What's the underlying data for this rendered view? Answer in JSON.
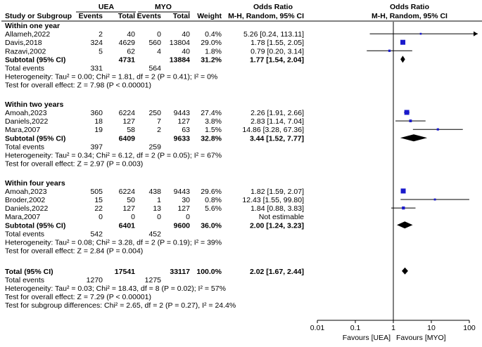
{
  "chart_data": {
    "type": "forest",
    "header": {
      "group1": "UEA",
      "group2": "MYO",
      "odds_ratio_col": "Odds Ratio",
      "plot_title": "Odds Ratio",
      "study_col": "Study or Subgroup",
      "events": "Events",
      "total": "Total",
      "weight": "Weight",
      "method": "M-H, Random, 95% CI"
    },
    "x_axis": {
      "scale": "log",
      "ticks": [
        0.01,
        0.1,
        1,
        10,
        100
      ],
      "tick_labels": [
        "0.01",
        "0.1",
        "1",
        "10",
        "100"
      ],
      "favours_left": "Favours [UEA]",
      "favours_right": "Favours [MYO]"
    },
    "subgroups": [
      {
        "title": "Within one year",
        "studies": [
          {
            "name": "Allameh,2022",
            "e1": "2",
            "n1": "40",
            "e2": "0",
            "n2": "40",
            "weight": "0.4%",
            "ci_text": "5.26 [0.24, 113.11]",
            "or": 5.26,
            "lo": 0.24,
            "hi": 113.11
          },
          {
            "name": "Davis,2018",
            "e1": "324",
            "n1": "4629",
            "e2": "560",
            "n2": "13804",
            "weight": "29.0%",
            "ci_text": "1.78 [1.55, 2.05]",
            "or": 1.78,
            "lo": 1.55,
            "hi": 2.05
          },
          {
            "name": "Razavi,2002",
            "e1": "5",
            "n1": "62",
            "e2": "4",
            "n2": "40",
            "weight": "1.8%",
            "ci_text": "0.79 [0.20, 3.14]",
            "or": 0.79,
            "lo": 0.2,
            "hi": 3.14
          }
        ],
        "subtotal": {
          "label": "Subtotal (95% CI)",
          "n1": "4731",
          "n2": "13884",
          "weight": "31.2%",
          "ci_text": "1.77 [1.54, 2.04]",
          "or": 1.77,
          "lo": 1.54,
          "hi": 2.04
        },
        "total_events": {
          "label": "Total events",
          "e1": "331",
          "e2": "564"
        },
        "heterogeneity": "Heterogeneity: Tau² = 0.00; Chi² = 1.81, df = 2 (P = 0.41); I² = 0%",
        "overall_effect": "Test for overall effect: Z = 7.98 (P < 0.00001)"
      },
      {
        "title": "Within two years",
        "studies": [
          {
            "name": "Amoah,2023",
            "e1": "360",
            "n1": "6224",
            "e2": "250",
            "n2": "9443",
            "weight": "27.4%",
            "ci_text": "2.26 [1.91, 2.66]",
            "or": 2.26,
            "lo": 1.91,
            "hi": 2.66
          },
          {
            "name": "Daniels,2022",
            "e1": "18",
            "n1": "127",
            "e2": "7",
            "n2": "127",
            "weight": "3.8%",
            "ci_text": "2.83 [1.14, 7.04]",
            "or": 2.83,
            "lo": 1.14,
            "hi": 7.04
          },
          {
            "name": "Mara,2007",
            "e1": "19",
            "n1": "58",
            "e2": "2",
            "n2": "63",
            "weight": "1.5%",
            "ci_text": "14.86 [3.28, 67.36]",
            "or": 14.86,
            "lo": 3.28,
            "hi": 67.36
          }
        ],
        "subtotal": {
          "label": "Subtotal (95% CI)",
          "n1": "6409",
          "n2": "9633",
          "weight": "32.8%",
          "ci_text": "3.44 [1.52, 7.77]",
          "or": 3.44,
          "lo": 1.52,
          "hi": 7.77
        },
        "total_events": {
          "label": "Total events",
          "e1": "397",
          "e2": "259"
        },
        "heterogeneity": "Heterogeneity: Tau² = 0.34; Chi² = 6.12, df = 2 (P = 0.05); I² = 67%",
        "overall_effect": "Test for overall effect: Z = 2.97 (P = 0.003)"
      },
      {
        "title": "Within four years",
        "studies": [
          {
            "name": "Amoah,2023",
            "e1": "505",
            "n1": "6224",
            "e2": "438",
            "n2": "9443",
            "weight": "29.6%",
            "ci_text": "1.82 [1.59, 2.07]",
            "or": 1.82,
            "lo": 1.59,
            "hi": 2.07
          },
          {
            "name": "Broder,2002",
            "e1": "15",
            "n1": "50",
            "e2": "1",
            "n2": "30",
            "weight": "0.8%",
            "ci_text": "12.43 [1.55, 99.80]",
            "or": 12.43,
            "lo": 1.55,
            "hi": 99.8
          },
          {
            "name": "Daniels,2022",
            "e1": "22",
            "n1": "127",
            "e2": "13",
            "n2": "127",
            "weight": "5.6%",
            "ci_text": "1.84 [0.88, 3.83]",
            "or": 1.84,
            "lo": 0.88,
            "hi": 3.83
          },
          {
            "name": "Mara,2007",
            "e1": "0",
            "n1": "0",
            "e2": "0",
            "n2": "0",
            "weight": "",
            "ci_text": "Not estimable",
            "or": null,
            "lo": null,
            "hi": null
          }
        ],
        "subtotal": {
          "label": "Subtotal (95% CI)",
          "n1": "6401",
          "n2": "9600",
          "weight": "36.0%",
          "ci_text": "2.00 [1.24, 3.23]",
          "or": 2.0,
          "lo": 1.24,
          "hi": 3.23
        },
        "total_events": {
          "label": "Total events",
          "e1": "542",
          "e2": "452"
        },
        "heterogeneity": "Heterogeneity: Tau² = 0.08; Chi² = 3.28, df = 2 (P = 0.19); I² = 39%",
        "overall_effect": "Test for overall effect: Z = 2.84 (P = 0.004)"
      }
    ],
    "overall": {
      "label": "Total (95% CI)",
      "n1": "17541",
      "n2": "33117",
      "weight": "100.0%",
      "ci_text": "2.02 [1.67, 2.44]",
      "or": 2.02,
      "lo": 1.67,
      "hi": 2.44,
      "total_events": {
        "label": "Total events",
        "e1": "1270",
        "e2": "1275"
      },
      "heterogeneity": "Heterogeneity: Tau² = 0.03; Chi² = 18.43, df = 8 (P = 0.02); I² = 57%",
      "overall_effect": "Test for overall effect: Z = 7.29 (P < 0.00001)",
      "subgroup_diff": "Test for subgroup differences: Chi² = 2.65, df = 2 (P = 0.27), I² = 24.4%"
    },
    "colors": {
      "square": "#1a1acc",
      "ci_line": "#000000",
      "diamond": "#000000"
    }
  }
}
